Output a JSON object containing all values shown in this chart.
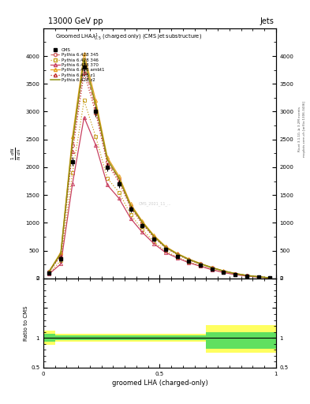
{
  "title_top": "13000 GeV pp",
  "title_right": "Jets",
  "xlabel": "groomed LHA (charged-only)",
  "ylabel_ratio": "Ratio to CMS",
  "right_label1": "Rivet 3.1.10, ≥ 3.2M events",
  "right_label2": "mcplots.cern.ch [arXiv:1306.3436]",
  "watermark": "CMS_2021_11_...",
  "x_bins": [
    0.0,
    0.05,
    0.1,
    0.15,
    0.2,
    0.25,
    0.3,
    0.35,
    0.4,
    0.45,
    0.5,
    0.55,
    0.6,
    0.65,
    0.7,
    0.75,
    0.8,
    0.85,
    0.9,
    0.95,
    1.0
  ],
  "cms_data": [
    100,
    350,
    2100,
    3800,
    3000,
    2000,
    1700,
    1250,
    950,
    700,
    520,
    400,
    310,
    240,
    170,
    110,
    70,
    40,
    20,
    5
  ],
  "cms_err": [
    30,
    60,
    80,
    100,
    90,
    70,
    65,
    55,
    45,
    38,
    32,
    28,
    23,
    18,
    14,
    10,
    8,
    6,
    4,
    2
  ],
  "p345": [
    120,
    430,
    2400,
    3850,
    3050,
    2100,
    1780,
    1300,
    1000,
    750,
    560,
    440,
    340,
    260,
    190,
    130,
    85,
    52,
    28,
    7
  ],
  "p346": [
    90,
    320,
    1900,
    3200,
    2550,
    1800,
    1550,
    1150,
    880,
    660,
    490,
    385,
    295,
    228,
    162,
    108,
    70,
    42,
    23,
    5
  ],
  "p370": [
    80,
    260,
    1700,
    2900,
    2400,
    1680,
    1440,
    1080,
    830,
    625,
    465,
    368,
    282,
    218,
    155,
    104,
    67,
    41,
    22,
    5
  ],
  "pambt1": [
    130,
    470,
    2550,
    4050,
    3200,
    2180,
    1840,
    1340,
    1030,
    775,
    575,
    450,
    350,
    268,
    196,
    135,
    88,
    54,
    30,
    8
  ],
  "pz1": [
    115,
    410,
    2280,
    3700,
    2980,
    2060,
    1740,
    1270,
    980,
    735,
    548,
    430,
    333,
    255,
    185,
    126,
    82,
    50,
    27,
    7
  ],
  "pz2": [
    125,
    450,
    2460,
    3950,
    3120,
    2140,
    1800,
    1310,
    1010,
    758,
    562,
    440,
    342,
    262,
    192,
    131,
    86,
    52,
    29,
    8
  ],
  "ratio_green_lo": [
    0.93,
    0.96,
    0.96,
    0.96,
    0.96,
    0.96,
    0.96,
    0.96,
    0.96,
    0.96,
    0.96,
    0.96,
    0.96,
    0.96,
    0.82,
    0.82,
    0.82,
    0.82,
    0.82,
    0.82
  ],
  "ratio_green_hi": [
    1.07,
    1.04,
    1.04,
    1.04,
    1.04,
    1.04,
    1.04,
    1.04,
    1.04,
    1.04,
    1.04,
    1.04,
    1.04,
    1.04,
    1.1,
    1.1,
    1.1,
    1.1,
    1.1,
    1.1
  ],
  "ratio_yellow_lo": [
    0.88,
    0.93,
    0.93,
    0.93,
    0.93,
    0.93,
    0.93,
    0.93,
    0.93,
    0.93,
    0.93,
    0.93,
    0.93,
    0.93,
    0.75,
    0.75,
    0.75,
    0.75,
    0.75,
    0.75
  ],
  "ratio_yellow_hi": [
    1.12,
    1.07,
    1.07,
    1.07,
    1.07,
    1.07,
    1.07,
    1.07,
    1.07,
    1.07,
    1.07,
    1.07,
    1.07,
    1.07,
    1.22,
    1.22,
    1.22,
    1.22,
    1.22,
    1.22
  ],
  "color_345": "#d4696b",
  "color_346": "#c8a020",
  "color_370": "#c84060",
  "color_ambt1": "#e8a020",
  "color_z1": "#c03030",
  "color_z2": "#909010",
  "color_cms": "#000000",
  "ylim_main": [
    0,
    4500
  ],
  "ylim_ratio": [
    0.5,
    2.0
  ],
  "yticks_main": [
    0,
    500,
    1000,
    1500,
    2000,
    2500,
    3000,
    3500,
    4000
  ],
  "bg_color": "#ffffff"
}
